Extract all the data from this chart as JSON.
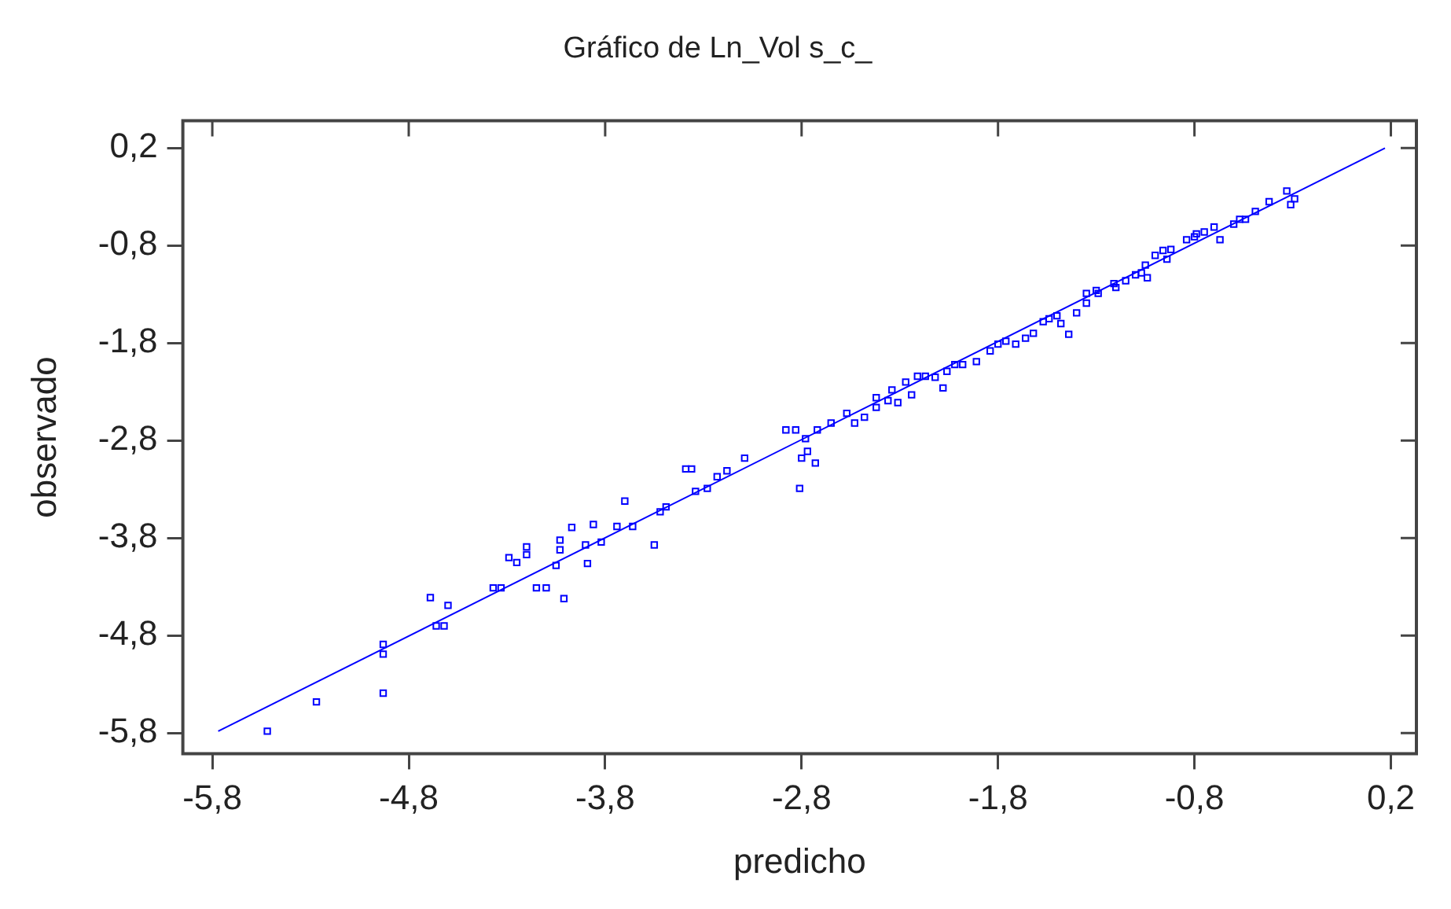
{
  "chart_data": {
    "type": "scatter",
    "title": "Gráfico de Ln_Vol s_c_",
    "xlabel": "predicho",
    "ylabel": "observado",
    "xlim": [
      -5.95,
      0.33
    ],
    "ylim": [
      -6.01,
      0.48
    ],
    "grid": false,
    "legend": false,
    "marker": "square",
    "xticks": [
      {
        "value": -5.8,
        "label": "-5,8"
      },
      {
        "value": -4.8,
        "label": "-4,8"
      },
      {
        "value": -3.8,
        "label": "-3,8"
      },
      {
        "value": -2.8,
        "label": "-2,8"
      },
      {
        "value": -1.8,
        "label": "-1,8"
      },
      {
        "value": -0.8,
        "label": "-0,8"
      },
      {
        "value": 0.2,
        "label": "0,2"
      }
    ],
    "yticks": [
      {
        "value": -5.8,
        "label": "-5,8"
      },
      {
        "value": -4.8,
        "label": "-4,8"
      },
      {
        "value": -3.8,
        "label": "-3,8"
      },
      {
        "value": -2.8,
        "label": "-2,8"
      },
      {
        "value": -1.8,
        "label": "-1,8"
      },
      {
        "value": -0.8,
        "label": "-0,8"
      },
      {
        "value": 0.2,
        "label": "0,2"
      }
    ],
    "series": [
      {
        "color": "#0000ff",
        "x": [
          -5.52,
          -5.27,
          -4.93,
          -4.93,
          -4.93,
          -4.69,
          -4.66,
          -4.62,
          -4.6,
          -4.37,
          -4.33,
          -4.29,
          -4.25,
          -4.2,
          -4.2,
          -4.15,
          -4.1,
          -4.03,
          -4.01,
          -4.05,
          -4.03,
          -3.97,
          -3.9,
          -3.89,
          -3.86,
          -3.82,
          -3.74,
          -3.7,
          -3.66,
          -3.55,
          -3.52,
          -3.49,
          -3.39,
          -3.36,
          -3.34,
          -3.28,
          -3.23,
          -3.18,
          -3.09,
          -2.88,
          -2.83,
          -2.81,
          -2.8,
          -2.78,
          -2.77,
          -2.73,
          -2.72,
          -2.65,
          -2.57,
          -2.53,
          -2.48,
          -2.42,
          -2.36,
          -2.31,
          -2.27,
          -2.24,
          -2.17,
          -2.12,
          -2.06,
          -2.02,
          -1.98,
          -1.91,
          -1.8,
          -1.76,
          -1.66,
          -1.62,
          -1.54,
          -1.48,
          -1.44,
          -1.4,
          -1.35,
          -1.29,
          -1.2,
          -1.15,
          -1.1,
          -1.05,
          -1.0,
          -0.92,
          -0.84,
          -0.75,
          -0.7,
          -0.67,
          -0.6,
          -0.54,
          -0.49,
          -0.42,
          -0.33,
          -0.31,
          -0.29,
          -1.04,
          -1.21,
          -0.94,
          -1.57,
          -1.84,
          -2.08,
          -2.34,
          -2.42,
          -2.21,
          -1.3,
          -0.8,
          -0.79,
          -1.07,
          -1.35,
          -1.5,
          -1.71,
          -0.96,
          -0.57
        ],
        "values": [
          -5.78,
          -5.48,
          -5.39,
          -4.99,
          -4.89,
          -4.41,
          -4.7,
          -4.7,
          -4.49,
          -4.31,
          -4.31,
          -4.0,
          -4.05,
          -3.97,
          -3.89,
          -4.31,
          -4.31,
          -3.92,
          -4.42,
          -4.08,
          -3.82,
          -3.69,
          -3.87,
          -4.06,
          -3.66,
          -3.84,
          -3.68,
          -3.42,
          -3.68,
          -3.87,
          -3.53,
          -3.48,
          -3.09,
          -3.09,
          -3.32,
          -3.29,
          -3.17,
          -3.11,
          -2.98,
          -2.69,
          -2.69,
          -3.29,
          -2.98,
          -2.78,
          -2.91,
          -3.03,
          -2.69,
          -2.62,
          -2.52,
          -2.62,
          -2.56,
          -2.46,
          -2.39,
          -2.41,
          -2.2,
          -2.33,
          -2.14,
          -2.15,
          -2.09,
          -2.02,
          -2.02,
          -1.99,
          -1.81,
          -1.78,
          -1.75,
          -1.7,
          -1.55,
          -1.6,
          -1.71,
          -1.49,
          -1.39,
          -1.29,
          -1.23,
          -1.16,
          -1.1,
          -1.0,
          -0.9,
          -0.84,
          -0.74,
          -0.66,
          -0.61,
          -0.74,
          -0.58,
          -0.53,
          -0.45,
          -0.35,
          -0.24,
          -0.38,
          -0.32,
          -1.13,
          -1.19,
          -0.94,
          -1.58,
          -1.88,
          -2.26,
          -2.28,
          -2.36,
          -2.14,
          -1.26,
          -0.71,
          -0.68,
          -1.08,
          -1.29,
          -1.52,
          -1.81,
          -0.85,
          -0.53
        ]
      },
      {
        "type": "line",
        "color": "#0000ff",
        "marker": "none",
        "x": [
          -5.77,
          0.17
        ],
        "values": [
          -5.78,
          0.2
        ]
      }
    ]
  }
}
